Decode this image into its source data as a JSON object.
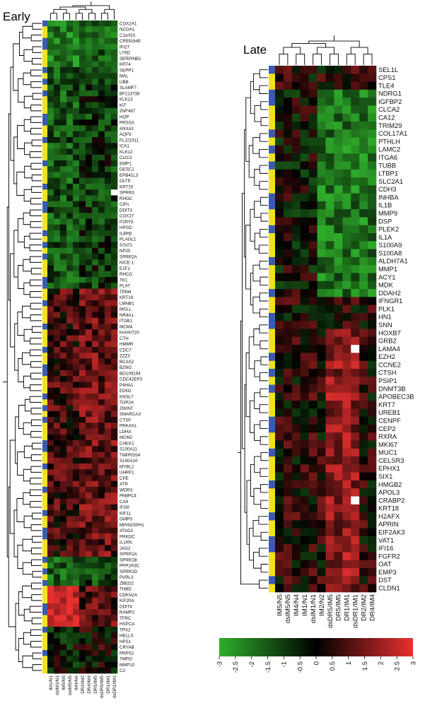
{
  "early": {
    "title": "Early",
    "columns": [
      "IM1/N1",
      "dsIM1/N1",
      "IM5/N5",
      "dsIM5/N5",
      "IM4/N4",
      "DR2/IM2",
      "DR4/IM4",
      "DR5/IM5",
      "dsDR5/IM5",
      "DR1/IM1",
      "dsDR1/IM1"
    ],
    "genes": [
      "COX2A1",
      "NCOA1",
      "C1orf10",
      "CR591649",
      "IFI27",
      "LY6D",
      "SERPINB1",
      "KRT4",
      "SEPP1",
      "MAL",
      "UBB",
      "SLAMF7",
      "BF213738",
      "KLK13",
      "KIT",
      "ZNF467",
      "HOP",
      "PRSS3",
      "ANXA1",
      "AQP3",
      "FLJ21511",
      "ICA1",
      "KLK12",
      "CLIC3",
      "EMP1",
      "DESC1",
      "EPB41L3",
      "GLTP",
      "KRT15",
      "SPRR3",
      "RHOC",
      "CIPs",
      "DDIT3",
      "COX17",
      "P2RY5",
      "HPGD",
      "IL8RB",
      "PLAGL1",
      "STAT1",
      "NP25",
      "SPRR2A",
      "NICE-1",
      "E2F1",
      "RHCG",
      "TK1",
      "PLAT",
      "TPM4",
      "KRT19",
      "LMNB1",
      "MGLL",
      "NR4A1",
      "ITGB1",
      "MCM4",
      "KIAA0720",
      "CTH",
      "HMMR",
      "CDC7",
      "ZZZ3",
      "BCAS2",
      "BZW2",
      "BG109194",
      "CDC42EP3",
      "P4HA1",
      "EDN2",
      "KNSL7",
      "TOP2A",
      "ZWINT",
      "SMARCA3",
      "CTSF",
      "PRKAA1",
      "LDHA",
      "MCM2",
      "CHEK1",
      "S100A11",
      "TMPRSS4",
      "S100A10",
      "MYBL2",
      "UHRF1",
      "CPE",
      "ATR",
      "WDR3",
      "PABPC4",
      "CA9",
      "IFI30",
      "KIF11",
      "GMPS",
      "MPHOSPH1",
      "ATAD2",
      "PRKDC",
      "IL1RN",
      "JAG2",
      "SPRR1A",
      "SPRR1B",
      "PPP1R3C",
      "SPRR2D",
      "PVRL3",
      "ZBED2",
      "THBD",
      "CDKN2A",
      "KIF20A",
      "DDIT4",
      "RAMP2",
      "TFRC",
      "HSPCA",
      "TPX2",
      "HELLS",
      "HPS1",
      "CRYAB",
      "PRPS2",
      "TMPO",
      "MMP10",
      "C3"
    ]
  },
  "late": {
    "title": "Late",
    "columns": [
      "IM5/N5",
      "dsIM5/N5",
      "IM4/N4",
      "IM1/N1",
      "dsIM1/N1",
      "IM2/N2",
      "dsDR5/IM5",
      "DR5/IM5",
      "DR1/IM1",
      "dsDR1/IM1",
      "DR2/IM2",
      "DR4/IM4"
    ],
    "genes": [
      "SEL1L",
      "CPS1",
      "TLE4",
      "NDRG1",
      "IGFBP2",
      "CLCA2",
      "CA12",
      "TRIM29",
      "COL17A1",
      "PTHLH",
      "LAMC2",
      "ITGA6",
      "TUBB",
      "LTBP1",
      "SLC2A1",
      "CDH3",
      "INHBA",
      "IL1B",
      "MMP9",
      "DSP",
      "PLEK2",
      "IL1A",
      "S100A9",
      "S100A8",
      "ALDH7A1",
      "MMP1",
      "ACY1",
      "MDK",
      "DDAH2",
      "IFNGR1",
      "PLK1",
      "HN1",
      "SNN",
      "HOXB7",
      "GRB2",
      "LAMA4",
      "EZH2",
      "CCNE2",
      "CTSH",
      "PSIP1",
      "DNMT3B",
      "APOBEC3B",
      "KRT7",
      "UREB1",
      "CENPF",
      "CEP2",
      "RXRA",
      "MKI67",
      "MUC1",
      "CELSR3",
      "EPHX1",
      "SIX1",
      "HMGB2",
      "APOL3",
      "CRABP2",
      "KRT18",
      "H2AFX",
      "APRIN",
      "EIF2AK3",
      "VAT1",
      "IFI16",
      "FGFR2",
      "OAT",
      "EMP3",
      "DST",
      "CLDN1"
    ]
  },
  "colorbar": {
    "ticks": [
      "-3",
      "-2.5",
      "-2",
      "-1.5",
      "-1",
      "-0.5",
      "0",
      "0.5",
      "1",
      "1.5",
      "2",
      "2.5",
      "3"
    ],
    "low_color": "#2fae2b",
    "mid_color": "#000000",
    "high_color": "#e8302f",
    "min": -3,
    "max": 3
  },
  "annotation_colors": {
    "blue": "#3a5bb0",
    "yellow": "#f2e21b",
    "missing": "#ffffff"
  }
}
